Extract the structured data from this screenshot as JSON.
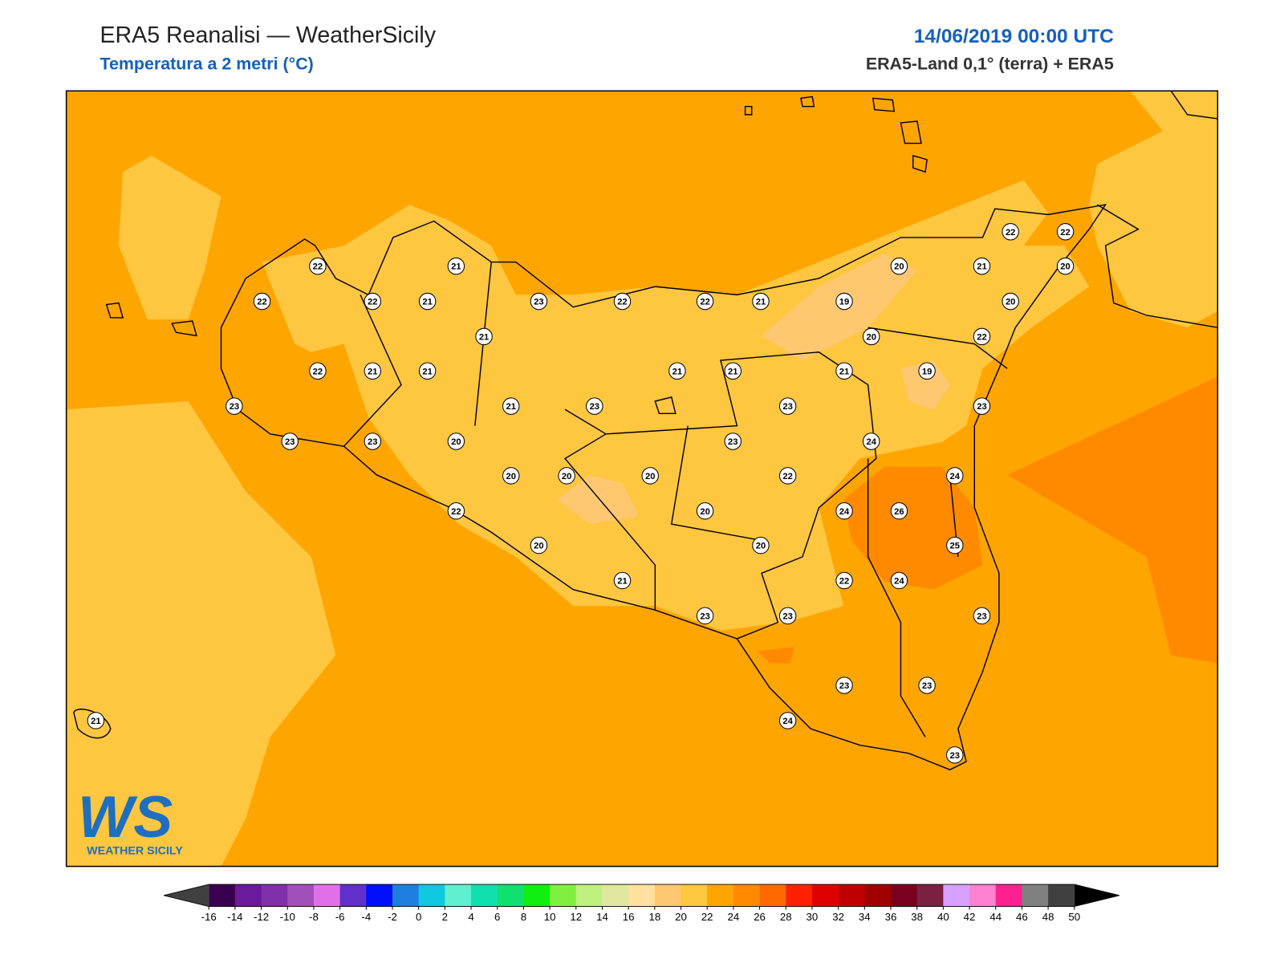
{
  "header": {
    "title": "ERA5 Reanalisi — WeatherSicily",
    "subtitle": "Temperatura a 2 metri (°C)",
    "date": "14/06/2019 00:00 UTC",
    "source": "ERA5-Land 0,1° (terra) + ERA5"
  },
  "stations": [
    22,
    21,
    22,
    22,
    21,
    23,
    22,
    22,
    21,
    19,
    20,
    21,
    22,
    22,
    20,
    20,
    21,
    20,
    22,
    22,
    21,
    21,
    21,
    21,
    21,
    19,
    23,
    21,
    23,
    23,
    23,
    23,
    23,
    20,
    23,
    24,
    20,
    20,
    20,
    22,
    24,
    22,
    20,
    24,
    26,
    20,
    20,
    25,
    21,
    22,
    24,
    23,
    23,
    23,
    23,
    23,
    24,
    23,
    21
  ],
  "colorbar": {
    "ticks": [
      -16,
      -14,
      -12,
      -10,
      -8,
      -6,
      -4,
      -2,
      0,
      2,
      4,
      6,
      8,
      10,
      12,
      14,
      16,
      18,
      20,
      22,
      24,
      26,
      28,
      30,
      32,
      34,
      36,
      38,
      40,
      42,
      44,
      46,
      48,
      50
    ],
    "colors": [
      "#3a0050",
      "#6a1a9a",
      "#8030a8",
      "#a050b8",
      "#e070e8",
      "#6030c8",
      "#0010ff",
      "#1e7fe0",
      "#10c8e0",
      "#60f0d0",
      "#10e0b0",
      "#10e070",
      "#10f010",
      "#80f040",
      "#c0f080",
      "#e0e8a0",
      "#ffe0a0",
      "#ffc870",
      "#ffc640",
      "#ffa500",
      "#ff8a00",
      "#ff6a00",
      "#ff2000",
      "#e00000",
      "#c00000",
      "#a00000",
      "#7a0020",
      "#7a2040",
      "#d8a0ff",
      "#ff80d0",
      "#ff2090",
      "#808080",
      "#404040"
    ],
    "under_color": "#404040",
    "over_color": "#000000"
  },
  "logo": {
    "mark": "WS",
    "text": "WEATHER SICILY"
  }
}
